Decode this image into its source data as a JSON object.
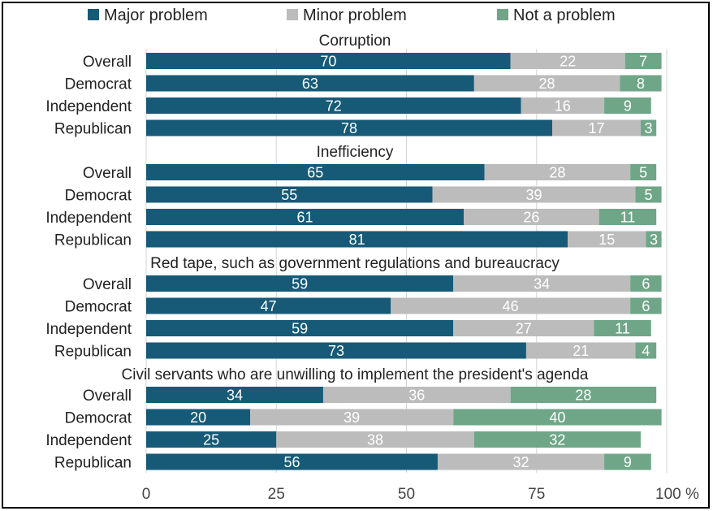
{
  "chart_data": {
    "type": "bar",
    "orientation": "horizontal",
    "stacked": true,
    "legend": {
      "position": "top",
      "entries": [
        {
          "name": "Major problem",
          "color": "#165a78"
        },
        {
          "name": "Minor problem",
          "color": "#bcbcbc"
        },
        {
          "name": "Not a problem",
          "color": "#6fa688"
        }
      ]
    },
    "x_axis": {
      "ticks": [
        0,
        25,
        50,
        75,
        100
      ],
      "tick_labels": [
        "0",
        "25",
        "50",
        "75",
        "100 %"
      ],
      "range": [
        0,
        100
      ],
      "grid": true
    },
    "groups": [
      {
        "title": "Corruption",
        "rows": [
          {
            "label": "Overall",
            "values": [
              70,
              22,
              7
            ]
          },
          {
            "label": "Democrat",
            "values": [
              63,
              28,
              8
            ]
          },
          {
            "label": "Independent",
            "values": [
              72,
              16,
              9
            ]
          },
          {
            "label": "Republican",
            "values": [
              78,
              17,
              3
            ]
          }
        ]
      },
      {
        "title": "Inefficiency",
        "rows": [
          {
            "label": "Overall",
            "values": [
              65,
              28,
              5
            ]
          },
          {
            "label": "Democrat",
            "values": [
              55,
              39,
              5
            ]
          },
          {
            "label": "Independent",
            "values": [
              61,
              26,
              11
            ]
          },
          {
            "label": "Republican",
            "values": [
              81,
              15,
              3
            ]
          }
        ]
      },
      {
        "title": "Red tape, such as government regulations and bureaucracy",
        "rows": [
          {
            "label": "Overall",
            "values": [
              59,
              34,
              6
            ]
          },
          {
            "label": "Democrat",
            "values": [
              47,
              46,
              6
            ]
          },
          {
            "label": "Independent",
            "values": [
              59,
              27,
              11
            ]
          },
          {
            "label": "Republican",
            "values": [
              73,
              21,
              4
            ]
          }
        ]
      },
      {
        "title": "Civil servants who are unwilling to implement the president's agenda",
        "rows": [
          {
            "label": "Overall",
            "values": [
              34,
              36,
              28
            ]
          },
          {
            "label": "Democrat",
            "values": [
              20,
              39,
              40
            ]
          },
          {
            "label": "Independent",
            "values": [
              25,
              38,
              32
            ]
          },
          {
            "label": "Republican",
            "values": [
              56,
              32,
              9
            ]
          }
        ]
      }
    ]
  }
}
